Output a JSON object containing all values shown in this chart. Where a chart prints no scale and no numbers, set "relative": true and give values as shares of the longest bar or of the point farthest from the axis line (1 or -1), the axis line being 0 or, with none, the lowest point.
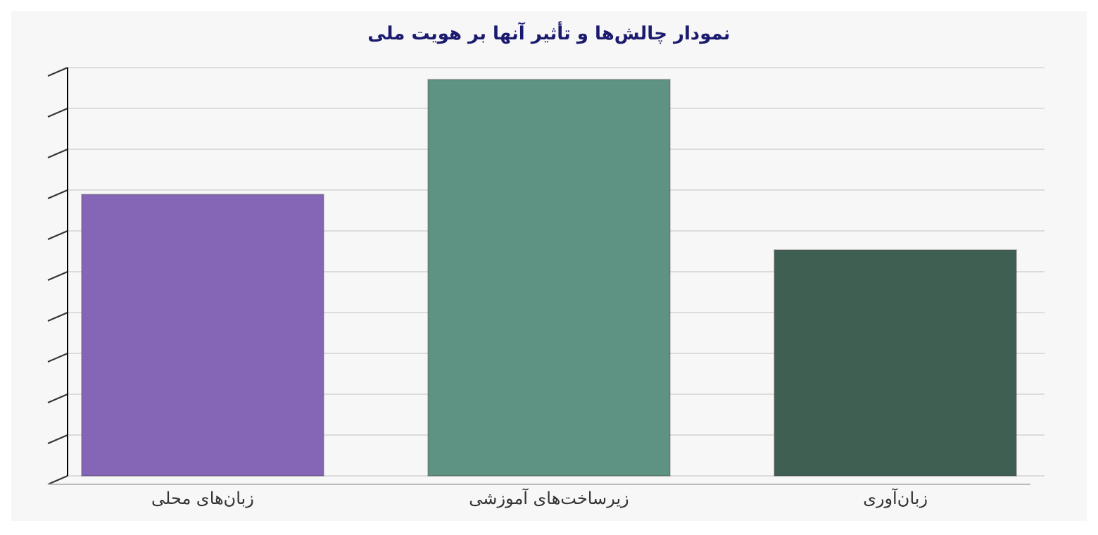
{
  "chart_data": {
    "type": "bar",
    "title": "نمودار چالش‌ها و تأثیر آنها بر هویت ملی",
    "categories": [
      "زبان‌های محلی",
      "زیرساخت‌های آموزشی",
      "زبان‌آوری"
    ],
    "values": [
      0.71,
      1,
      0.57
    ],
    "colors": [
      "#8565b5",
      "#5e9282",
      "#3f5f52"
    ],
    "relative": true,
    "grid": true
  }
}
